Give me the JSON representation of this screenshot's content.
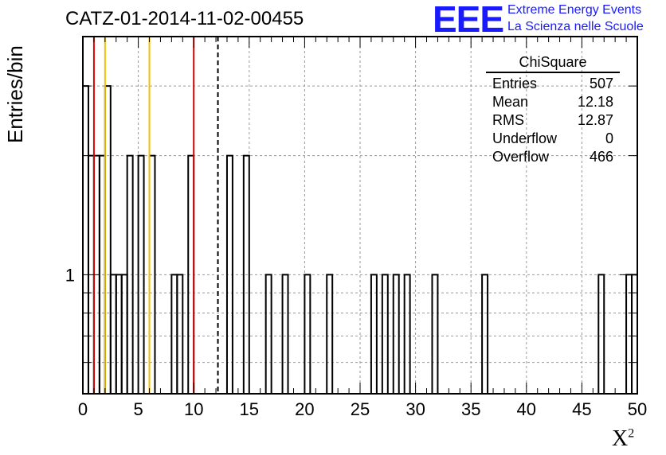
{
  "header": {
    "title": "CATZ-01-2014-11-02-00455",
    "logo_text": "EEE",
    "logo_line1": "Extreme Energy Events",
    "logo_line2": "La Scienza nelle Scuole"
  },
  "stats_box": {
    "title": "ChiSquare",
    "rows": [
      {
        "label": "Entries",
        "value": "507"
      },
      {
        "label": "Mean",
        "value": "12.18"
      },
      {
        "label": "RMS",
        "value": "12.87"
      },
      {
        "label": "Underflow",
        "value": "0"
      },
      {
        "label": "Overflow",
        "value": "466"
      }
    ]
  },
  "chart_data": {
    "type": "bar",
    "title": "CATZ-01-2014-11-02-00455",
    "xlabel": "X",
    "xlabel_superscript": "2",
    "ylabel": "Entries/bin",
    "xlim": [
      0,
      50
    ],
    "ylim": [
      0.5,
      4
    ],
    "y_scale": "log",
    "bin_width": 0.5,
    "x_ticks": [
      0,
      5,
      10,
      15,
      20,
      25,
      30,
      35,
      40,
      45,
      50
    ],
    "y_ticks": [
      1
    ],
    "grid": true,
    "bins": [
      {
        "x": 0.0,
        "value": 3
      },
      {
        "x": 0.5,
        "value": 2
      },
      {
        "x": 1.0,
        "value": 2
      },
      {
        "x": 1.5,
        "value": 2
      },
      {
        "x": 2.0,
        "value": 3
      },
      {
        "x": 2.5,
        "value": 1
      },
      {
        "x": 3.0,
        "value": 1
      },
      {
        "x": 3.5,
        "value": 1
      },
      {
        "x": 4.0,
        "value": 2
      },
      {
        "x": 4.5,
        "value": 0
      },
      {
        "x": 5.0,
        "value": 2
      },
      {
        "x": 5.5,
        "value": 0
      },
      {
        "x": 6.0,
        "value": 2
      },
      {
        "x": 6.5,
        "value": 0
      },
      {
        "x": 7.0,
        "value": 0
      },
      {
        "x": 7.5,
        "value": 0
      },
      {
        "x": 8.0,
        "value": 1
      },
      {
        "x": 8.5,
        "value": 1
      },
      {
        "x": 9.0,
        "value": 0
      },
      {
        "x": 9.5,
        "value": 2
      },
      {
        "x": 10.0,
        "value": 0
      },
      {
        "x": 13.0,
        "value": 2
      },
      {
        "x": 14.5,
        "value": 2
      },
      {
        "x": 16.5,
        "value": 1
      },
      {
        "x": 18.0,
        "value": 1
      },
      {
        "x": 20.0,
        "value": 1
      },
      {
        "x": 22.0,
        "value": 1
      },
      {
        "x": 26.0,
        "value": 1
      },
      {
        "x": 27.0,
        "value": 1
      },
      {
        "x": 28.0,
        "value": 1
      },
      {
        "x": 29.0,
        "value": 1
      },
      {
        "x": 31.5,
        "value": 1
      },
      {
        "x": 36.0,
        "value": 1
      },
      {
        "x": 46.5,
        "value": 1
      },
      {
        "x": 49.0,
        "value": 1
      },
      {
        "x": 49.5,
        "value": 1
      }
    ],
    "reference_lines": [
      {
        "x": 1.0,
        "color": "#dd0000",
        "style": "solid"
      },
      {
        "x": 2.0,
        "color": "#f2c000",
        "style": "solid"
      },
      {
        "x": 6.0,
        "color": "#f2c000",
        "style": "solid"
      },
      {
        "x": 10.0,
        "color": "#dd0000",
        "style": "solid"
      },
      {
        "x": 12.18,
        "color": "#000000",
        "style": "dashed"
      }
    ]
  }
}
